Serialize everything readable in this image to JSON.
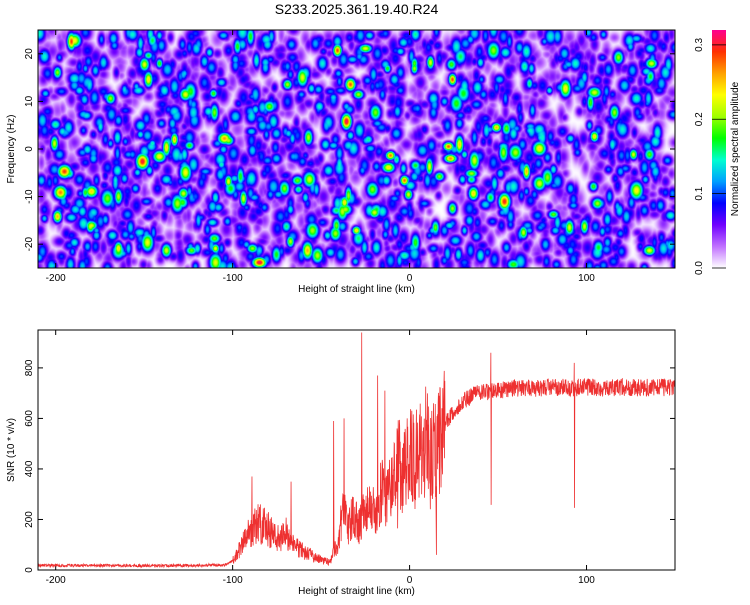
{
  "title": "S233.2025.361.19.40.R24",
  "chart_data": [
    {
      "type": "heatmap",
      "title": "S233.2025.361.19.40.R24",
      "xlabel": "Height of straight line (km)",
      "ylabel": "Frequency (Hz)",
      "xlim": [
        -210,
        150
      ],
      "ylim": [
        -25,
        25
      ],
      "xticks": [
        -200,
        -100,
        0,
        100
      ],
      "yticks": [
        -20,
        -10,
        0,
        10,
        20
      ],
      "description_values": "speckle noise of normalized spectral amplitude, mostly 0.02-0.08 with sparse peaks up to 0.3",
      "colorbar": {
        "label": "Normalized spectral amplitude",
        "range": [
          0.0,
          0.32
        ],
        "ticks": [
          0.0,
          0.1,
          0.2,
          0.3
        ],
        "tick_labels": [
          "0.0",
          "0.1",
          "0.2",
          "0.3"
        ],
        "colormap": [
          "#ffffff",
          "#c070ff",
          "#7000ff",
          "#0000ff",
          "#00a0ff",
          "#00ffd0",
          "#00ff00",
          "#a0ff00",
          "#ffff00",
          "#ffa000",
          "#ff3000",
          "#ff0090"
        ]
      }
    },
    {
      "type": "line",
      "xlabel": "Height of straight line (km)",
      "ylabel": "SNR (10 * v/v)",
      "xlim": [
        -210,
        150
      ],
      "ylim": [
        0,
        950
      ],
      "xticks": [
        -200,
        -100,
        0,
        100
      ],
      "yticks": [
        0,
        200,
        400,
        600,
        800
      ],
      "series": [
        {
          "name": "SNR",
          "color": "#ee3030",
          "x": [
            -210,
            -180,
            -150,
            -120,
            -105,
            -100,
            -97,
            -92,
            -88,
            -85,
            -80,
            -75,
            -70,
            -66,
            -62,
            -58,
            -54,
            -50,
            -45,
            -41,
            -39,
            -37,
            -35,
            -33,
            -31,
            -29,
            -27,
            -24,
            -22,
            -20,
            -18,
            -16,
            -14,
            -12,
            -10,
            -8,
            -6,
            -4,
            -2,
            0,
            3,
            6,
            9,
            12,
            15,
            18,
            22,
            26,
            30,
            35,
            40,
            50,
            60,
            70,
            80,
            90,
            100,
            110,
            120,
            130,
            140,
            150
          ],
          "values": [
            18,
            18,
            17,
            18,
            20,
            35,
            70,
            130,
            170,
            190,
            160,
            120,
            150,
            100,
            80,
            70,
            50,
            40,
            30,
            100,
            180,
            240,
            160,
            200,
            220,
            180,
            200,
            280,
            230,
            240,
            190,
            330,
            260,
            300,
            320,
            380,
            420,
            360,
            400,
            450,
            430,
            470,
            520,
            420,
            500,
            540,
            600,
            640,
            670,
            690,
            700,
            710,
            720,
            720,
            725,
            720,
            725,
            720,
            725,
            720,
            725,
            720
          ],
          "peaks": [
            [
              -89,
              370
            ],
            [
              -67,
              350
            ],
            [
              -43,
              590
            ],
            [
              -37,
              600
            ],
            [
              -27,
              940
            ],
            [
              -18,
              770
            ],
            [
              -14,
              710
            ],
            [
              -7,
              550
            ],
            [
              15,
              200
            ],
            [
              46,
              860
            ],
            [
              93,
              820
            ]
          ]
        }
      ]
    }
  ]
}
